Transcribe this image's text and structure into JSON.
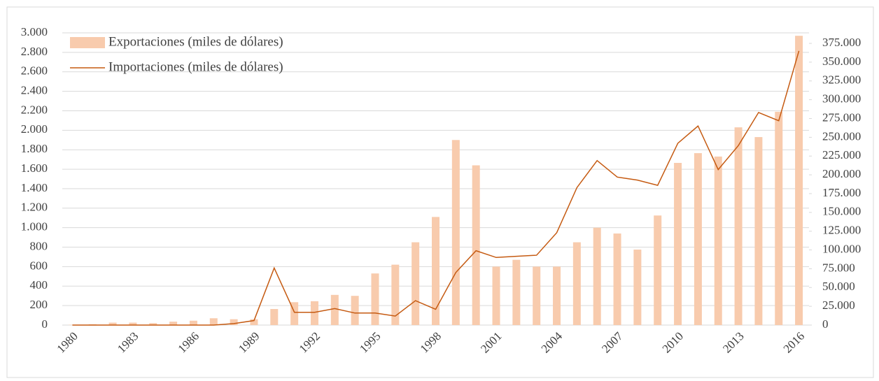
{
  "chart_data": {
    "type": "bar",
    "categories": [
      "1980",
      null,
      null,
      "1983",
      null,
      null,
      "1986",
      null,
      null,
      "1989",
      null,
      null,
      "1992",
      null,
      null,
      "1995",
      null,
      null,
      "1998",
      null,
      null,
      "2001",
      null,
      null,
      "2004",
      null,
      null,
      "2007",
      null,
      null,
      "2010",
      null,
      null,
      "2013",
      null,
      null,
      "2016"
    ],
    "series": [
      {
        "name": "Exportaciones (miles de dólares)",
        "type": "bar",
        "color": "#f8cbad",
        "axis": "y",
        "values": [
          3,
          8,
          25,
          25,
          20,
          35,
          45,
          70,
          60,
          60,
          165,
          235,
          245,
          310,
          300,
          530,
          620,
          850,
          1110,
          1900,
          1640,
          600,
          670,
          600,
          600,
          850,
          1000,
          940,
          775,
          1125,
          1665,
          1765,
          1730,
          2030,
          1930,
          2190,
          2970
        ]
      },
      {
        "name": "Importaciones (miles de dólares)",
        "type": "line",
        "color": "#c55a11",
        "axis": "y2",
        "values": [
          0,
          0,
          0,
          0,
          0,
          0,
          0,
          0,
          2000,
          6000,
          76000,
          17000,
          17000,
          22000,
          16000,
          16000,
          12000,
          32500,
          21000,
          70000,
          99000,
          90000,
          91500,
          93000,
          123000,
          183000,
          219000,
          197000,
          193000,
          186000,
          242000,
          265000,
          207000,
          239000,
          283000,
          272000,
          365000
        ]
      }
    ],
    "ylim": [
      0,
      3000
    ],
    "yticks": [
      0,
      200,
      400,
      600,
      800,
      {
        "value": 1000,
        "label": "1.000"
      },
      {
        "value": 1200,
        "label": "1.200"
      },
      {
        "value": 1400,
        "label": "1.400"
      },
      {
        "value": 1600,
        "label": "1.600"
      },
      {
        "value": 1800,
        "label": "1.800"
      },
      {
        "value": 2000,
        "label": "2.000"
      },
      {
        "value": 2200,
        "label": "2.200"
      },
      {
        "value": 2400,
        "label": "2.400"
      },
      {
        "value": 2600,
        "label": "2.600"
      },
      {
        "value": 2800,
        "label": "2.800"
      },
      {
        "value": 3000,
        "label": "3.000"
      }
    ],
    "y2lim": [
      0,
      389000
    ],
    "y2ticks": [
      0,
      {
        "value": 25000,
        "label": "25.000"
      },
      {
        "value": 50000,
        "label": "50.000"
      },
      {
        "value": 75000,
        "label": "75.000"
      },
      {
        "value": 100000,
        "label": "100.000"
      },
      {
        "value": 125000,
        "label": "125.000"
      },
      {
        "value": 150000,
        "label": "150.000"
      },
      {
        "value": 175000,
        "label": "175.000"
      },
      {
        "value": 200000,
        "label": "200.000"
      },
      {
        "value": 225000,
        "label": "225.000"
      },
      {
        "value": 250000,
        "label": "250.000"
      },
      {
        "value": 275000,
        "label": "275.000"
      },
      {
        "value": 300000,
        "label": "300.000"
      },
      {
        "value": 325000,
        "label": "325.000"
      },
      {
        "value": 350000,
        "label": "350.000"
      },
      {
        "value": 375000,
        "label": "375.000"
      }
    ],
    "grid": true,
    "legend": "top-left"
  }
}
